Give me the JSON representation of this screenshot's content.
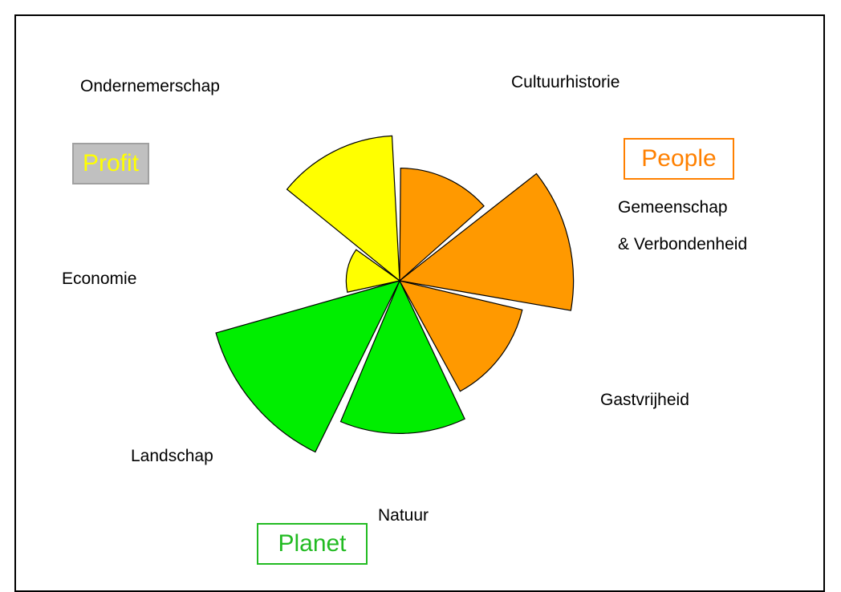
{
  "chart_data": {
    "type": "rose",
    "categories": [
      "Cultuurhistorie",
      "Gemeenschap\n& Verbondenheid",
      "Gastvrijheid",
      "Natuur",
      "Landschap",
      "Economie",
      "Ondernemerschap"
    ],
    "values": [
      5.9,
      9.1,
      6.6,
      8.0,
      10,
      2.8,
      7.6
    ],
    "colors": [
      "#ff9900",
      "#ff9900",
      "#ff9900",
      "#00ee00",
      "#00ee00",
      "#ffff00",
      "#ffff00"
    ],
    "rlim": [
      0,
      10
    ],
    "groups": [
      {
        "name": "Profit",
        "color": "#ffff00",
        "fill": "#c0c0c0",
        "border": "#a0a0a0"
      },
      {
        "name": "People",
        "color": "#ff8000",
        "fill": "#ffffff",
        "border": "#ff8000"
      },
      {
        "name": "Planet",
        "color": "#22bb22",
        "fill": "#ffffff",
        "border": "#22bb22"
      }
    ]
  }
}
